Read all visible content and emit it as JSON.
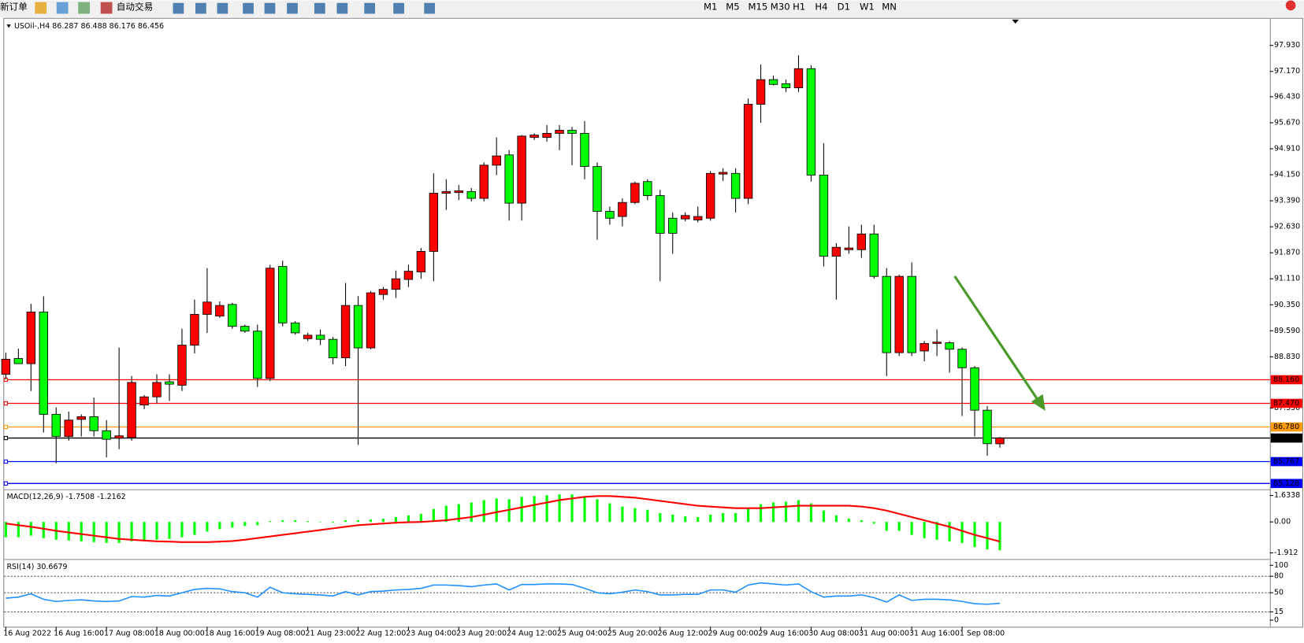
{
  "toolbar": {
    "new_order": "新订单",
    "auto_trading": "自动交易",
    "timeframes": [
      "M1",
      "M5",
      "M15",
      "M30",
      "H1",
      "H4",
      "D1",
      "W1",
      "MN"
    ]
  },
  "chart_data": [
    {
      "type": "candlestick",
      "title": "USOil-,H4 86.287 86.488 86.176 86.456",
      "up_color": "#ff0000",
      "down_color": "#00ff00",
      "categories": [
        "16 Aug 2022",
        null,
        null,
        null,
        "16 Aug 16:00",
        null,
        null,
        null,
        "17 Aug 08:00",
        null,
        null,
        null,
        "18 Aug 00:00",
        null,
        null,
        null,
        "18 Aug 16:00",
        null,
        null,
        null,
        "19 Aug 08:00",
        null,
        null,
        null,
        "21 Aug 23:00",
        null,
        null,
        null,
        "22 Aug 12:00",
        null,
        null,
        null,
        "23 Aug 04:00",
        null,
        null,
        null,
        "23 Aug 20:00",
        null,
        null,
        null,
        "24 Aug 12:00",
        null,
        null,
        null,
        "25 Aug 04:00",
        null,
        null,
        null,
        "25 Aug 20:00",
        null,
        null,
        null,
        "26 Aug 12:00",
        null,
        null,
        null,
        "29 Aug 00:00",
        null,
        null,
        null,
        "29 Aug 16:00",
        null,
        null,
        null,
        "30 Aug 08:00",
        null,
        null,
        null,
        "31 Aug 00:00",
        null,
        null,
        null,
        "31 Aug 16:00",
        null,
        null,
        null,
        "1 Sep 08:00",
        null,
        null,
        null
      ],
      "open": [
        88.32,
        88.78,
        88.63,
        90.14,
        87.15,
        86.5,
        87.0,
        87.08,
        86.67,
        86.45,
        86.47,
        87.42,
        87.66,
        88.1,
        88.0,
        89.17,
        90.07,
        90.02,
        90.36,
        89.72,
        89.58,
        88.2,
        91.47,
        89.82,
        89.36,
        89.46,
        89.34,
        88.8,
        90.33,
        89.09,
        90.65,
        90.8,
        91.09,
        91.31,
        91.91,
        93.61,
        93.63,
        93.66,
        93.46,
        94.43,
        94.73,
        93.32,
        95.24,
        95.24,
        95.36,
        95.45,
        95.36,
        94.39,
        93.08,
        92.93,
        93.34,
        93.95,
        93.54,
        92.88,
        92.86,
        92.83,
        92.88,
        94.17,
        94.19,
        93.46,
        96.21,
        96.93,
        96.81,
        96.69,
        97.25,
        94.14,
        91.77,
        91.96,
        91.96,
        92.42,
        91.18,
        88.95,
        91.18,
        89.0,
        89.22,
        89.24,
        89.05,
        88.51,
        87.27,
        86.287
      ],
      "high": [
        88.95,
        89.07,
        90.38,
        90.6,
        87.35,
        87.23,
        87.15,
        87.64,
        86.98,
        89.1,
        88.27,
        87.71,
        88.32,
        88.32,
        89.65,
        90.5,
        91.42,
        90.45,
        90.41,
        89.77,
        89.77,
        91.52,
        91.64,
        89.87,
        89.53,
        89.63,
        89.41,
        90.99,
        90.6,
        90.75,
        90.87,
        91.35,
        91.52,
        92.01,
        94.19,
        94.02,
        93.85,
        93.76,
        94.51,
        95.24,
        94.87,
        95.31,
        95.36,
        95.6,
        95.6,
        95.55,
        95.72,
        94.51,
        93.22,
        93.46,
        93.95,
        94.02,
        93.71,
        93.05,
        93.05,
        93.22,
        94.26,
        94.34,
        94.34,
        96.38,
        97.37,
        97.05,
        96.93,
        97.64,
        97.35,
        95.07,
        92.15,
        92.64,
        92.69,
        92.69,
        91.42,
        91.23,
        91.59,
        89.29,
        89.63,
        89.29,
        89.1,
        88.56,
        87.39,
        86.488
      ],
      "low": [
        88.17,
        88.63,
        87.83,
        86.62,
        85.72,
        86.38,
        86.5,
        86.5,
        85.89,
        86.13,
        86.38,
        87.3,
        87.47,
        87.54,
        87.83,
        88.93,
        89.53,
        89.97,
        89.65,
        89.53,
        87.95,
        88.12,
        89.72,
        89.48,
        89.29,
        89.17,
        88.61,
        88.56,
        86.26,
        89.05,
        90.5,
        90.55,
        90.87,
        91.11,
        91.04,
        93.12,
        93.41,
        93.37,
        93.37,
        94.14,
        92.81,
        92.81,
        95.17,
        95.12,
        94.87,
        94.43,
        94.02,
        92.25,
        92.69,
        92.64,
        93.29,
        93.41,
        91.04,
        91.84,
        92.79,
        92.76,
        92.81,
        93.97,
        93.05,
        93.29,
        95.67,
        96.76,
        96.57,
        96.57,
        93.95,
        91.47,
        90.5,
        91.84,
        91.72,
        91.11,
        88.27,
        88.85,
        88.85,
        88.7,
        88.85,
        88.37,
        87.1,
        86.5,
        85.94,
        86.176
      ],
      "close": [
        88.76,
        88.63,
        90.14,
        87.15,
        86.5,
        86.98,
        87.08,
        86.67,
        86.42,
        86.52,
        88.08,
        87.66,
        88.08,
        88.03,
        89.17,
        90.07,
        90.43,
        90.33,
        89.72,
        89.58,
        88.2,
        91.42,
        89.82,
        89.53,
        89.46,
        89.34,
        88.8,
        90.33,
        89.09,
        90.7,
        90.8,
        91.11,
        91.33,
        91.91,
        93.61,
        93.66,
        93.68,
        93.46,
        94.43,
        94.7,
        93.32,
        95.28,
        95.31,
        95.36,
        95.45,
        95.36,
        94.39,
        93.08,
        92.88,
        93.34,
        93.9,
        93.54,
        92.44,
        92.44,
        92.96,
        92.93,
        94.19,
        94.22,
        93.46,
        96.21,
        96.93,
        96.79,
        96.69,
        97.25,
        94.14,
        91.77,
        92.03,
        92.01,
        92.42,
        91.18,
        88.95,
        91.18,
        88.95,
        89.22,
        89.26,
        89.05,
        88.51,
        87.27,
        86.29,
        86.456
      ],
      "ylim": [
        84.97,
        98.71
      ],
      "yticks": [
        {
          "value": 97.93,
          "label": "97.930"
        },
        {
          "value": 97.17,
          "label": "97.170"
        },
        {
          "value": 96.43,
          "label": "96.430"
        },
        {
          "value": 95.67,
          "label": "95.670"
        },
        {
          "value": 94.91,
          "label": "94.910"
        },
        {
          "value": 94.15,
          "label": "94.150"
        },
        {
          "value": 93.39,
          "label": "93.390"
        },
        {
          "value": 92.63,
          "label": "92.630"
        },
        {
          "value": 91.87,
          "label": "91.870"
        },
        {
          "value": 91.11,
          "label": "91.110"
        },
        {
          "value": 90.35,
          "label": "90.350"
        },
        {
          "value": 89.59,
          "label": "89.590"
        },
        {
          "value": 88.83,
          "label": "88.830"
        },
        {
          "value": 87.33,
          "label": "87.330"
        }
      ],
      "lines": [
        {
          "value": 88.16,
          "label": "88.160",
          "color": "#ff0000"
        },
        {
          "value": 87.47,
          "label": "87.470",
          "color": "#ff0000"
        },
        {
          "value": 86.78,
          "label": "86.780",
          "color": "#ff9900"
        },
        {
          "value": 86.456,
          "label": "86.456",
          "color": "#000000"
        },
        {
          "value": 85.767,
          "label": "85.767",
          "color": "#0000ff"
        },
        {
          "value": 85.128,
          "label": "85.128",
          "color": "#0000ff"
        }
      ]
    },
    {
      "type": "macd",
      "title": "MACD(12,26,9) -1.7508 -1.2162",
      "series": [
        {
          "name": "MACD",
          "color": "#00ff00",
          "values": [
            -0.95,
            -0.95,
            -0.85,
            -1.0,
            -1.1,
            -1.15,
            -1.2,
            -1.25,
            -1.3,
            -1.3,
            -1.2,
            -1.15,
            -1.1,
            -1.05,
            -0.95,
            -0.8,
            -0.6,
            -0.45,
            -0.35,
            -0.25,
            -0.2,
            0.05,
            0.1,
            0.1,
            0.05,
            0.0,
            -0.05,
            0.1,
            0.1,
            0.15,
            0.2,
            0.3,
            0.4,
            0.5,
            0.8,
            1.0,
            1.1,
            1.2,
            1.35,
            1.45,
            1.4,
            1.55,
            1.6,
            1.65,
            1.7,
            1.7,
            1.6,
            1.4,
            1.15,
            0.95,
            0.85,
            0.75,
            0.55,
            0.45,
            0.35,
            0.3,
            0.45,
            0.55,
            0.55,
            0.85,
            1.1,
            1.2,
            1.25,
            1.35,
            1.15,
            0.7,
            0.4,
            0.2,
            0.1,
            -0.1,
            -0.55,
            -0.55,
            -0.8,
            -1.0,
            -1.1,
            -1.2,
            -1.3,
            -1.55,
            -1.7,
            -1.7508
          ]
        },
        {
          "name": "Signal",
          "color": "#ff0000",
          "values": [
            -0.1,
            -0.2,
            -0.3,
            -0.42,
            -0.55,
            -0.65,
            -0.75,
            -0.85,
            -0.95,
            -1.05,
            -1.1,
            -1.15,
            -1.2,
            -1.22,
            -1.25,
            -1.25,
            -1.25,
            -1.22,
            -1.18,
            -1.1,
            -1.0,
            -0.9,
            -0.8,
            -0.7,
            -0.6,
            -0.5,
            -0.4,
            -0.3,
            -0.2,
            -0.15,
            -0.1,
            -0.05,
            -0.02,
            0.0,
            0.05,
            0.1,
            0.2,
            0.3,
            0.45,
            0.6,
            0.75,
            0.9,
            1.05,
            1.2,
            1.35,
            1.45,
            1.55,
            1.6,
            1.6,
            1.55,
            1.5,
            1.4,
            1.3,
            1.2,
            1.1,
            1.0,
            0.95,
            0.9,
            0.85,
            0.85,
            0.85,
            0.9,
            0.95,
            1.0,
            1.0,
            1.0,
            1.0,
            1.0,
            0.95,
            0.85,
            0.7,
            0.5,
            0.3,
            0.1,
            -0.1,
            -0.3,
            -0.55,
            -0.8,
            -1.0,
            -1.2162
          ]
        }
      ],
      "ylim": [
        -2.22,
        1.94
      ],
      "yticks": [
        1.6338,
        {
          "value": 0,
          "label": "0.00"
        },
        -1.912
      ]
    },
    {
      "type": "line",
      "title": "RSI(14) 30.6679",
      "color": "#1e90ff",
      "values": [
        40,
        42,
        48,
        38,
        34,
        36,
        37,
        35,
        34,
        35,
        43,
        42,
        45,
        44,
        50,
        56,
        58,
        57,
        52,
        50,
        42,
        60,
        50,
        48,
        47,
        46,
        44,
        52,
        46,
        52,
        53,
        55,
        56,
        58,
        64,
        64,
        63,
        61,
        64,
        66,
        55,
        65,
        65,
        66,
        66,
        65,
        58,
        50,
        48,
        51,
        55,
        52,
        46,
        46,
        47,
        47,
        55,
        55,
        51,
        64,
        68,
        66,
        64,
        66,
        52,
        42,
        44,
        44,
        46,
        41,
        33,
        46,
        36,
        38,
        38,
        37,
        34,
        30,
        29,
        30.6679
      ],
      "ylim": [
        0,
        100
      ],
      "yticks": [
        100,
        80,
        50,
        15,
        0
      ],
      "levels": [
        80,
        50,
        15
      ]
    }
  ]
}
